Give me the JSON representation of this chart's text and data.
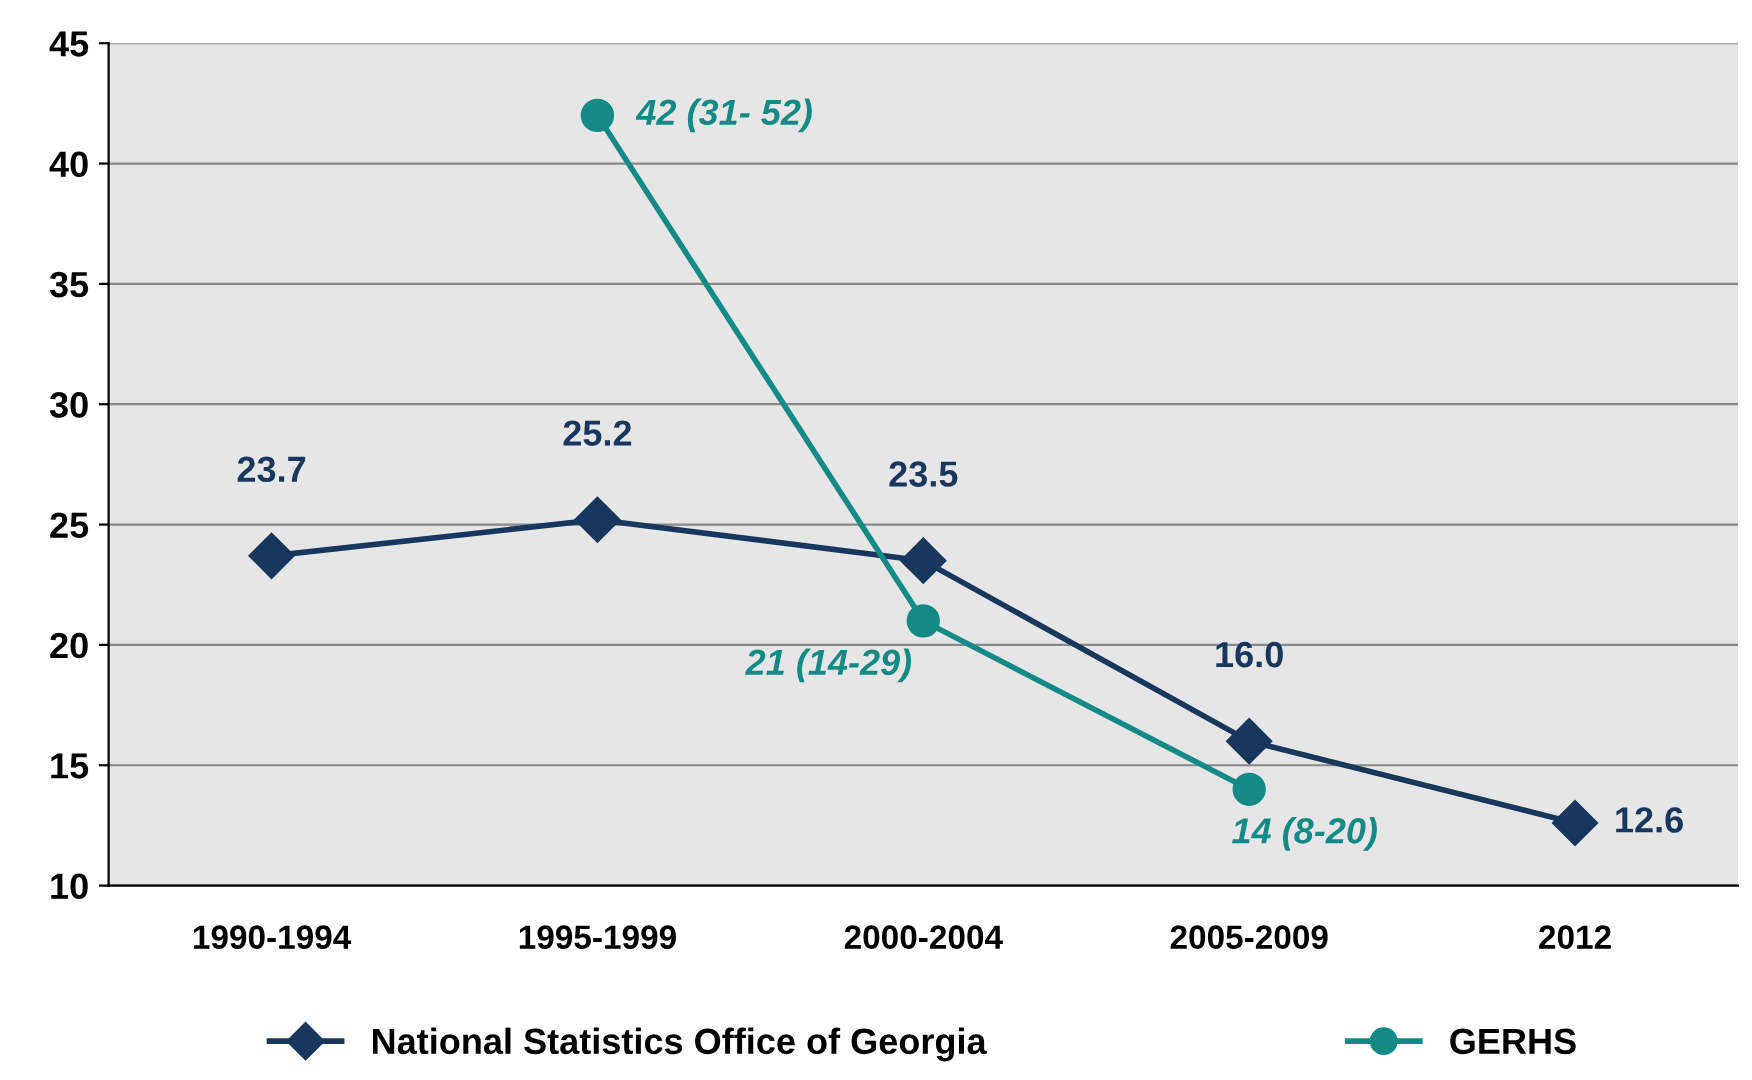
{
  "chart_data": {
    "type": "line",
    "categories": [
      "1990-1994",
      "1995-1999",
      "2000-2004",
      "2005-2009",
      "2012"
    ],
    "series": [
      {
        "name": "National Statistics Office of Georgia",
        "color": "#17375e",
        "marker": "diamond",
        "values": [
          23.7,
          25.2,
          23.5,
          16.0,
          12.6
        ],
        "value_labels": [
          "23.7",
          "25.2",
          "23.5",
          "16.0",
          "12.6"
        ]
      },
      {
        "name": "GERHS",
        "color": "#138a86",
        "marker": "circle",
        "values": [
          null,
          42,
          21,
          14,
          null
        ],
        "value_labels": [
          null,
          "42 (31- 52)",
          "21 (14-29)",
          "14 (8-20)",
          null
        ]
      }
    ],
    "ylim": [
      10,
      45
    ],
    "yticks": [
      10,
      15,
      20,
      25,
      30,
      35,
      40,
      45
    ],
    "grid": "y",
    "legend": "bottom"
  }
}
